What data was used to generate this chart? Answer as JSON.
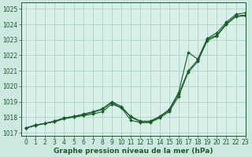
{
  "title": "Graphe pression niveau de la mer (hPa)",
  "bg_color": "#cce8e0",
  "plot_bg_color": "#d8f0ea",
  "grid_color": "#a8c8bc",
  "line_color": "#1a5c2a",
  "xlim": [
    -0.5,
    23
  ],
  "ylim": [
    1016.8,
    1025.4
  ],
  "yticks": [
    1017,
    1018,
    1019,
    1020,
    1021,
    1022,
    1023,
    1024,
    1025
  ],
  "xticks": [
    0,
    1,
    2,
    3,
    4,
    5,
    6,
    7,
    8,
    9,
    10,
    11,
    12,
    13,
    14,
    15,
    16,
    17,
    18,
    19,
    20,
    21,
    22,
    23
  ],
  "series1_x": [
    0,
    1,
    2,
    3,
    4,
    5,
    6,
    7,
    8,
    9,
    10,
    11,
    12,
    13,
    14,
    15,
    16,
    17,
    18,
    19,
    20,
    21,
    22,
    23
  ],
  "series1": [
    1017.3,
    1017.5,
    1017.6,
    1017.75,
    1017.95,
    1018.05,
    1018.15,
    1018.3,
    1018.5,
    1018.95,
    1018.6,
    1018.05,
    1017.75,
    1017.75,
    1018.05,
    1018.5,
    1019.6,
    1022.2,
    1021.75,
    1023.1,
    1023.45,
    1024.15,
    1024.65,
    1024.75
  ],
  "series2_x": [
    0,
    1,
    2,
    3,
    4,
    5,
    6,
    7,
    8,
    9,
    10,
    11,
    12,
    13,
    14,
    15,
    16,
    17,
    18,
    19,
    20,
    21,
    22,
    23
  ],
  "series2": [
    1017.3,
    1017.5,
    1017.6,
    1017.75,
    1017.95,
    1018.05,
    1018.2,
    1018.35,
    1018.55,
    1019.0,
    1018.7,
    1018.0,
    1017.7,
    1017.7,
    1018.0,
    1018.45,
    1019.5,
    1021.0,
    1021.7,
    1023.05,
    1023.3,
    1024.05,
    1024.55,
    1024.6
  ],
  "series3_x": [
    0,
    1,
    2,
    3,
    4,
    5,
    6,
    7,
    8,
    9,
    10,
    11,
    12,
    13,
    14,
    15,
    16,
    17,
    18,
    19,
    20,
    21,
    22,
    23
  ],
  "series3": [
    1017.3,
    1017.45,
    1017.6,
    1017.7,
    1017.9,
    1018.0,
    1018.1,
    1018.2,
    1018.35,
    1018.85,
    1018.6,
    1017.8,
    1017.65,
    1017.65,
    1017.95,
    1018.35,
    1019.35,
    1020.9,
    1021.6,
    1022.95,
    1023.25,
    1024.0,
    1024.5,
    1024.55
  ],
  "tick_fontsize": 5.5,
  "title_fontsize": 6.5
}
